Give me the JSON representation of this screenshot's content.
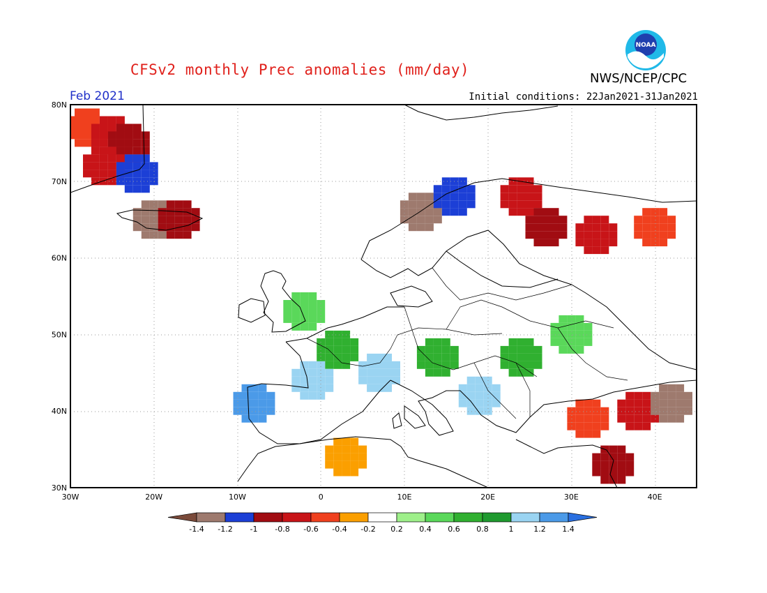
{
  "title": "CFSv2 monthly Prec anomalies (mm/day)",
  "agency": "NWS/NCEP/CPC",
  "logo_text": "NOAA",
  "month": "Feb 2021",
  "initial_conditions": "Initial conditions: 22Jan2021-31Jan2021",
  "lon_labels": [
    "30W",
    "20W",
    "10W",
    "0",
    "10E",
    "20E",
    "30E",
    "40E"
  ],
  "lat_labels": [
    "80N",
    "70N",
    "60N",
    "50N",
    "40N",
    "30N"
  ],
  "colorbar": {
    "labels": [
      "-1.4",
      "-1.2",
      "-1",
      "-0.8",
      "-0.6",
      "-0.4",
      "-0.2",
      "0.2",
      "0.4",
      "0.6",
      "0.8",
      "1",
      "1.2",
      "1.4"
    ],
    "colors": [
      "#7a4a3a",
      "#9e7a6e",
      "#1c3fd6",
      "#a10c12",
      "#c81418",
      "#f0401e",
      "#fb9f00",
      "#ffffff",
      "#9ef08a",
      "#5ad85a",
      "#30b030",
      "#1f9a2f",
      "#9ad4f2",
      "#4b9ae8",
      "#2a6fe0"
    ]
  },
  "chart_data": {
    "type": "heatmap",
    "title": "CFSv2 monthly Prec anomalies (mm/day)",
    "period": "Feb 2021",
    "lon_range": [
      -30,
      45
    ],
    "lat_range": [
      30,
      80
    ],
    "units": "mm/day",
    "cells": [
      {
        "lon": -28,
        "lat": 77,
        "v": -0.5
      },
      {
        "lon": -25,
        "lat": 76,
        "v": -0.7
      },
      {
        "lon": -23,
        "lat": 75,
        "v": -0.8
      },
      {
        "lon": -26,
        "lat": 72,
        "v": -0.6
      },
      {
        "lon": -22,
        "lat": 71,
        "v": -1.1
      },
      {
        "lon": -20,
        "lat": 65,
        "v": -1.3
      },
      {
        "lon": -17,
        "lat": 65,
        "v": -0.8
      },
      {
        "lon": 12,
        "lat": 66,
        "v": -1.3
      },
      {
        "lon": 16,
        "lat": 68,
        "v": -1.1
      },
      {
        "lon": 24,
        "lat": 68,
        "v": -0.6
      },
      {
        "lon": 27,
        "lat": 64,
        "v": -0.9
      },
      {
        "lon": 33,
        "lat": 63,
        "v": -0.6
      },
      {
        "lon": 40,
        "lat": 64,
        "v": -0.4
      },
      {
        "lon": -2,
        "lat": 53,
        "v": 0.5
      },
      {
        "lon": 2,
        "lat": 48,
        "v": 0.7
      },
      {
        "lon": -1,
        "lat": 44,
        "v": 1.1
      },
      {
        "lon": 7,
        "lat": 45,
        "v": 1.2
      },
      {
        "lon": 14,
        "lat": 47,
        "v": 0.8
      },
      {
        "lon": 19,
        "lat": 42,
        "v": 1.2
      },
      {
        "lon": 24,
        "lat": 47,
        "v": 0.7
      },
      {
        "lon": 30,
        "lat": 50,
        "v": 0.5
      },
      {
        "lon": -8,
        "lat": 41,
        "v": 1.3
      },
      {
        "lon": 32,
        "lat": 39,
        "v": -0.4
      },
      {
        "lon": 38,
        "lat": 40,
        "v": -0.6
      },
      {
        "lon": 42,
        "lat": 41,
        "v": -1.2
      },
      {
        "lon": 35,
        "lat": 33,
        "v": -0.8
      },
      {
        "lon": 3,
        "lat": 34,
        "v": -0.3
      }
    ]
  }
}
